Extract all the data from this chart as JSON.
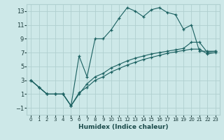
{
  "xlabel": "Humidex (Indice chaleur)",
  "bg_color": "#cde8e8",
  "grid_color": "#b0d0d0",
  "line_color": "#1a6060",
  "xlim": [
    -0.5,
    23.5
  ],
  "ylim": [
    -2,
    14
  ],
  "xticks": [
    0,
    1,
    2,
    3,
    4,
    5,
    6,
    7,
    8,
    9,
    10,
    11,
    12,
    13,
    14,
    15,
    16,
    17,
    18,
    19,
    20,
    21,
    22,
    23
  ],
  "yticks": [
    -1,
    1,
    3,
    5,
    7,
    9,
    11,
    13
  ],
  "series": [
    {
      "x": [
        0,
        1,
        2,
        3,
        4,
        5,
        6,
        7,
        8,
        9,
        10,
        11,
        12,
        13,
        14,
        15,
        16,
        17,
        18,
        19,
        20,
        21,
        22,
        23
      ],
      "y": [
        3,
        2,
        1,
        1,
        1,
        -0.7,
        6.5,
        3.5,
        9,
        9,
        10.3,
        12,
        13.5,
        13,
        12.2,
        13.2,
        13.5,
        12.8,
        12.5,
        10.4,
        11.0,
        7.2,
        7.2,
        7.2
      ]
    },
    {
      "x": [
        0,
        1,
        2,
        3,
        4,
        5,
        6,
        7,
        8,
        9,
        10,
        11,
        12,
        13,
        14,
        15,
        16,
        17,
        18,
        19,
        20,
        21,
        22,
        23
      ],
      "y": [
        3,
        2,
        1,
        1,
        1,
        -0.7,
        1.0,
        2.5,
        3.5,
        4.0,
        4.8,
        5.3,
        5.8,
        6.2,
        6.5,
        6.8,
        7.0,
        7.2,
        7.4,
        7.6,
        8.5,
        8.5,
        7.0,
        7.2
      ]
    },
    {
      "x": [
        0,
        1,
        2,
        3,
        4,
        5,
        6,
        7,
        8,
        9,
        10,
        11,
        12,
        13,
        14,
        15,
        16,
        17,
        18,
        19,
        20,
        21,
        22,
        23
      ],
      "y": [
        3,
        2,
        1,
        1,
        1,
        -0.7,
        1.2,
        2.0,
        3.0,
        3.5,
        4.2,
        4.7,
        5.2,
        5.6,
        6.0,
        6.3,
        6.6,
        6.9,
        7.1,
        7.3,
        7.5,
        7.5,
        6.8,
        7.0
      ]
    }
  ]
}
